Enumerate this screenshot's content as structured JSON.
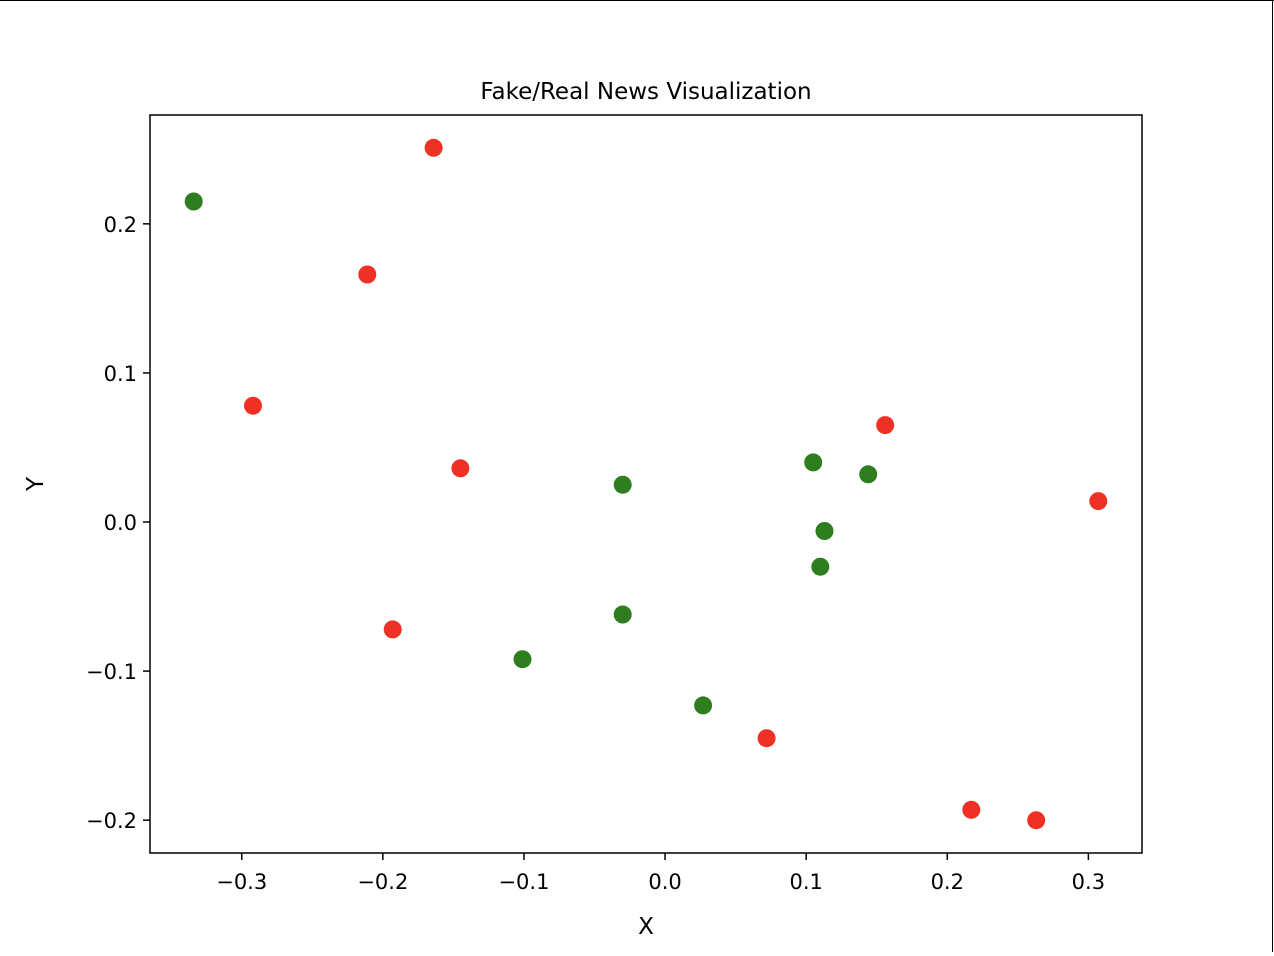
{
  "chart_data": {
    "type": "scatter",
    "title": "Fake/Real News Visualization",
    "xlabel": "X",
    "ylabel": "Y",
    "xlim": [
      -0.365,
      0.338
    ],
    "ylim": [
      -0.222,
      0.273
    ],
    "xticks": [
      -0.3,
      -0.2,
      -0.1,
      0.0,
      0.1,
      0.2,
      0.3
    ],
    "yticks": [
      -0.2,
      -0.1,
      0.0,
      0.1,
      0.2
    ],
    "xtick_labels": [
      "−0.3",
      "−0.2",
      "−0.1",
      "0.0",
      "0.1",
      "0.2",
      "0.3"
    ],
    "ytick_labels": [
      "−0.2",
      "−0.1",
      "0.0",
      "0.1",
      "0.2"
    ],
    "grid": false,
    "legend": null,
    "series": [
      {
        "color": "#ee3124",
        "points": [
          {
            "x": -0.164,
            "y": 0.251
          },
          {
            "x": -0.211,
            "y": 0.166
          },
          {
            "x": -0.292,
            "y": 0.078
          },
          {
            "x": -0.145,
            "y": 0.036
          },
          {
            "x": -0.193,
            "y": -0.072
          },
          {
            "x": 0.156,
            "y": 0.065
          },
          {
            "x": 0.307,
            "y": 0.014
          },
          {
            "x": 0.072,
            "y": -0.145
          },
          {
            "x": 0.217,
            "y": -0.193
          },
          {
            "x": 0.263,
            "y": -0.2
          }
        ]
      },
      {
        "color": "#2e7d1f",
        "points": [
          {
            "x": -0.334,
            "y": 0.215
          },
          {
            "x": -0.03,
            "y": 0.025
          },
          {
            "x": 0.105,
            "y": 0.04
          },
          {
            "x": 0.144,
            "y": 0.032
          },
          {
            "x": 0.113,
            "y": -0.006
          },
          {
            "x": 0.11,
            "y": -0.03
          },
          {
            "x": -0.03,
            "y": -0.062
          },
          {
            "x": -0.101,
            "y": -0.092
          },
          {
            "x": 0.027,
            "y": -0.123
          }
        ]
      }
    ]
  }
}
